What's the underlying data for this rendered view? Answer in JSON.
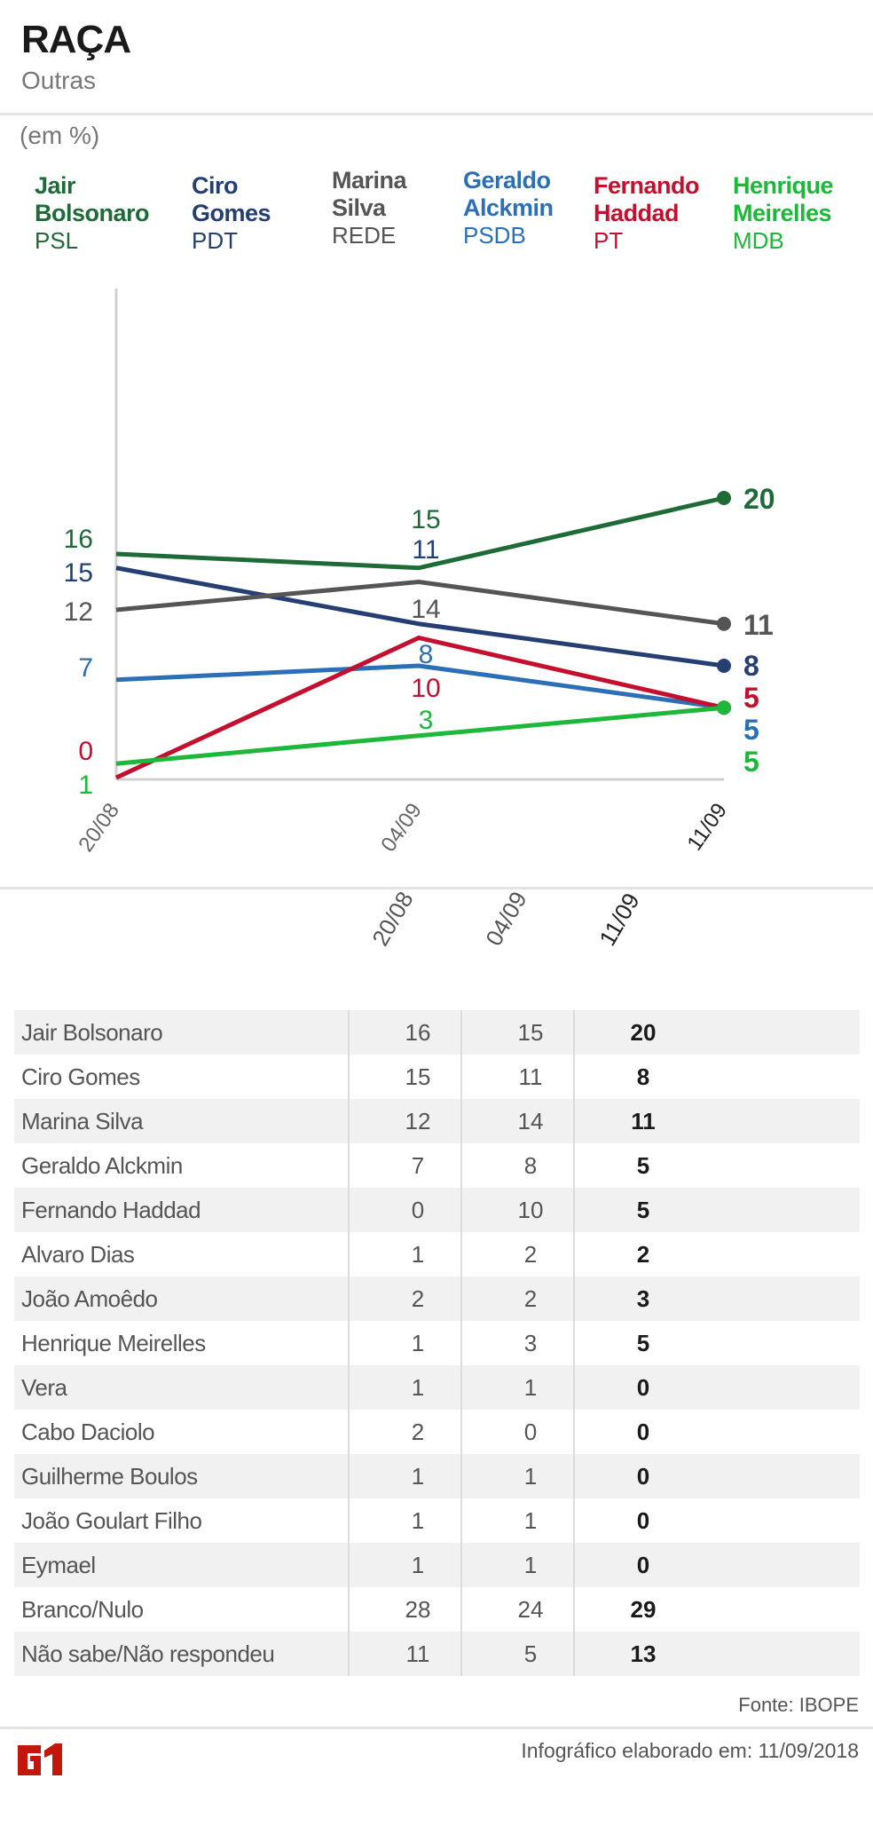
{
  "header": {
    "title": "RAÇA",
    "subtitle": "Outras",
    "unit": "(em %)"
  },
  "legend": [
    {
      "name": "Jair Bolsonaro",
      "line1": "Jair",
      "line2": "Bolsonaro",
      "party": "PSL",
      "color": "#1e6b37"
    },
    {
      "name": "Ciro Gomes",
      "line1": "Ciro",
      "line2": "Gomes",
      "party": "PDT",
      "color": "#253f73"
    },
    {
      "name": "Marina Silva",
      "line1": "Marina",
      "line2": "Silva",
      "party": "REDE",
      "color": "#555555"
    },
    {
      "name": "Geraldo Alckmin",
      "line1": "Geraldo",
      "line2": "Alckmin",
      "party": "PSDB",
      "color": "#2b6fb6"
    },
    {
      "name": "Fernando Haddad",
      "line1": "Fernando",
      "line2": "Haddad",
      "party": "PT",
      "color": "#c3102f"
    },
    {
      "name": "Henrique Meirelles",
      "line1": "Henrique",
      "line2": "Meirelles",
      "party": "MDB",
      "color": "#1db83a"
    }
  ],
  "chart_data": {
    "type": "line",
    "categories": [
      "20/08",
      "04/09",
      "11/09"
    ],
    "ylim": [
      0,
      20
    ],
    "grid": false,
    "legend": "top",
    "series": [
      {
        "name": "Jair Bolsonaro",
        "values": [
          16,
          15,
          20
        ],
        "color": "#1e6b37"
      },
      {
        "name": "Ciro Gomes",
        "values": [
          15,
          11,
          8
        ],
        "color": "#253f73"
      },
      {
        "name": "Marina Silva",
        "values": [
          12,
          14,
          11
        ],
        "color": "#555555"
      },
      {
        "name": "Geraldo Alckmin",
        "values": [
          7,
          8,
          5
        ],
        "color": "#2b6fb6"
      },
      {
        "name": "Fernando Haddad",
        "values": [
          0,
          10,
          5
        ],
        "color": "#c3102f"
      },
      {
        "name": "Henrique Meirelles",
        "values": [
          1,
          3,
          5
        ],
        "color": "#1db83a"
      }
    ]
  },
  "table": {
    "columns": [
      "20/08",
      "04/09",
      "11/09"
    ],
    "rows": [
      {
        "name": "Jair Bolsonaro",
        "values": [
          "16",
          "15",
          "20"
        ]
      },
      {
        "name": "Ciro Gomes",
        "values": [
          "15",
          "11",
          "8"
        ]
      },
      {
        "name": "Marina Silva",
        "values": [
          "12",
          "14",
          "11"
        ]
      },
      {
        "name": "Geraldo Alckmin",
        "values": [
          "7",
          "8",
          "5"
        ]
      },
      {
        "name": "Fernando Haddad",
        "values": [
          "0",
          "10",
          "5"
        ]
      },
      {
        "name": "Alvaro Dias",
        "values": [
          "1",
          "2",
          "2"
        ]
      },
      {
        "name": "João Amoêdo",
        "values": [
          "2",
          "2",
          "3"
        ]
      },
      {
        "name": "Henrique Meirelles",
        "values": [
          "1",
          "3",
          "5"
        ]
      },
      {
        "name": "Vera",
        "values": [
          "1",
          "1",
          "0"
        ]
      },
      {
        "name": "Cabo Daciolo",
        "values": [
          "2",
          "0",
          "0"
        ]
      },
      {
        "name": "Guilherme Boulos",
        "values": [
          "1",
          "1",
          "0"
        ]
      },
      {
        "name": "João Goulart Filho",
        "values": [
          "1",
          "1",
          "0"
        ]
      },
      {
        "name": "Eymael",
        "values": [
          "1",
          "1",
          "0"
        ]
      },
      {
        "name": "Branco/Nulo",
        "values": [
          "28",
          "24",
          "29"
        ]
      },
      {
        "name": "Não sabe/Não respondeu",
        "values": [
          "11",
          "5",
          "13"
        ]
      }
    ]
  },
  "footer": {
    "source": "Fonte: IBOPE",
    "made": "Infográfico elaborado em: 11/09/2018",
    "logo": "G1",
    "logo_color": "#c4170c"
  }
}
